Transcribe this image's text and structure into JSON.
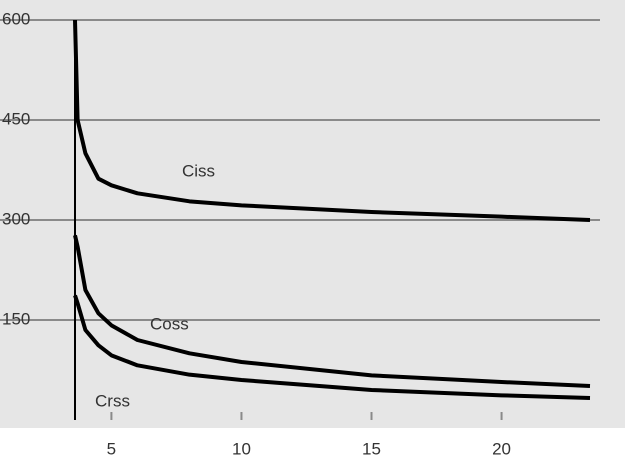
{
  "chart_data": {
    "type": "line",
    "x": [
      3.6,
      3.7,
      4,
      4.5,
      5,
      6,
      8,
      10,
      15,
      20,
      23.4
    ],
    "series": [
      {
        "name": "Ciss",
        "color": "#000000",
        "values": [
          600,
          450,
          400,
          362,
          352,
          340,
          328,
          322,
          312,
          305,
          300
        ]
      },
      {
        "name": "Coss",
        "color": "#000000",
        "values": [
          277,
          260,
          195,
          160,
          142,
          120,
          100,
          87,
          67,
          57,
          51
        ]
      },
      {
        "name": "Crss",
        "color": "#000000",
        "values": [
          187,
          175,
          135,
          112,
          97,
          82,
          68,
          60,
          45,
          37,
          33
        ]
      }
    ],
    "xlim": [
      3.6,
      23.4
    ],
    "ylim": [
      0,
      600
    ],
    "xticks": [
      5,
      10,
      15,
      20
    ],
    "yticks": [
      150,
      300,
      450,
      600
    ],
    "grid": true
  }
}
